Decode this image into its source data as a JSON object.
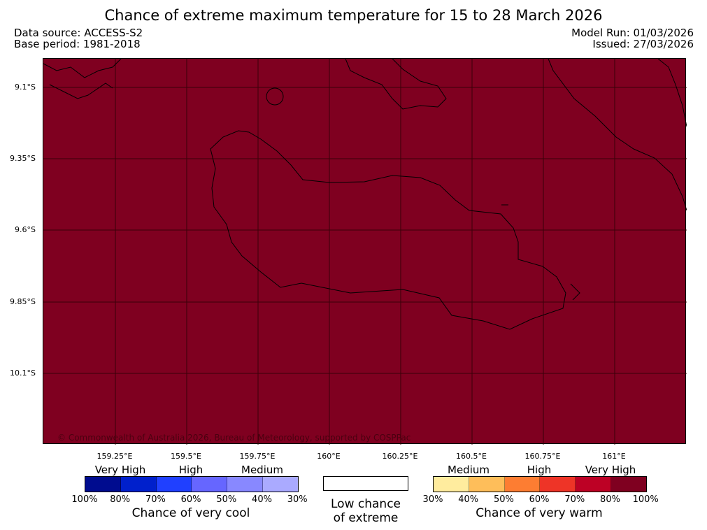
{
  "title": "Chance of extreme maximum temperature for 15 to 28 March 2026",
  "data_source": "Data source: ACCESS-S2",
  "base_period": "Base period: 1981-2018",
  "model_run": "Model Run: 01/03/2026",
  "issued": "Issued: 27/03/2026",
  "map": {
    "lat_labels": [
      "9.1°S",
      "9.35°S",
      "9.6°S",
      "9.85°S",
      "10.1°S"
    ],
    "lon_labels": [
      "159.25°E",
      "159.5°E",
      "159.75°E",
      "160°E",
      "160.25°E",
      "160.5°E",
      "160.75°E",
      "161°E"
    ],
    "copyright": "© Commonwealth of Australia 2026, Bureau of Meteorology, supported by COSPPac",
    "fill_color": "#7f0020"
  },
  "legend": {
    "cool": {
      "categories": [
        "Very High",
        "High",
        "Medium"
      ],
      "ticks": [
        "100%",
        "80%",
        "70%",
        "60%",
        "50%",
        "40%",
        "30%"
      ],
      "colors": [
        "#000c8f",
        "#0020cc",
        "#2040ff",
        "#6666ff",
        "#8888ff",
        "#aaaaff"
      ],
      "caption": "Chance of very cool"
    },
    "neutral": {
      "caption_line1": "Low chance",
      "caption_line2": "of extreme",
      "color": "#ffffff"
    },
    "warm": {
      "categories": [
        "Medium",
        "High",
        "Very High"
      ],
      "ticks": [
        "30%",
        "40%",
        "50%",
        "60%",
        "70%",
        "80%",
        "100%"
      ],
      "colors": [
        "#ffec9e",
        "#febe5a",
        "#fd7d32",
        "#ee3427",
        "#bd0125",
        "#7f0020"
      ],
      "caption": "Chance of very warm"
    }
  }
}
